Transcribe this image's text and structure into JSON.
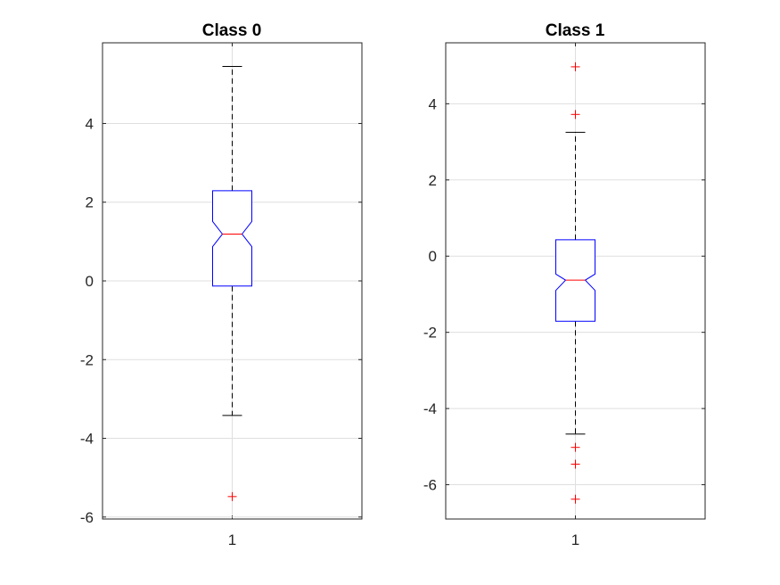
{
  "chart_data": [
    {
      "type": "boxplot",
      "title": "Class 0",
      "categories": [
        "1"
      ],
      "ylim": [
        -6.05,
        6.05
      ],
      "yticks": [
        -6,
        -4,
        -2,
        0,
        2,
        4
      ],
      "ytick_labels": [
        "-6",
        "-4",
        "-2",
        "0",
        "2",
        "4"
      ],
      "notched": true,
      "grid": true,
      "boxes": [
        {
          "category": "1",
          "whisker_low": -3.42,
          "q1": -0.13,
          "median": 1.19,
          "q3": 2.29,
          "whisker_high": 5.45,
          "notch_low": 0.87,
          "notch_high": 1.51,
          "outliers": [
            -5.48
          ]
        }
      ]
    },
    {
      "type": "boxplot",
      "title": "Class 1",
      "categories": [
        "1"
      ],
      "ylim": [
        -6.9,
        5.6
      ],
      "yticks": [
        -6,
        -4,
        -2,
        0,
        2,
        4
      ],
      "ytick_labels": [
        "-6",
        "-4",
        "-2",
        "0",
        "2",
        "4"
      ],
      "notched": true,
      "grid": true,
      "boxes": [
        {
          "category": "1",
          "whisker_low": -4.67,
          "q1": -1.71,
          "median": -0.63,
          "q3": 0.43,
          "whisker_high": 3.25,
          "notch_low": -0.9,
          "notch_high": -0.47,
          "outliers": [
            4.97,
            3.72,
            -5.02,
            -5.46,
            -6.38
          ]
        }
      ]
    }
  ],
  "colors": {
    "box": "#0000ff",
    "median": "#ff0000",
    "outlier": "#ff0000",
    "whisker": "#000000",
    "grid": "#dfdfdf",
    "axes": "#262626"
  }
}
